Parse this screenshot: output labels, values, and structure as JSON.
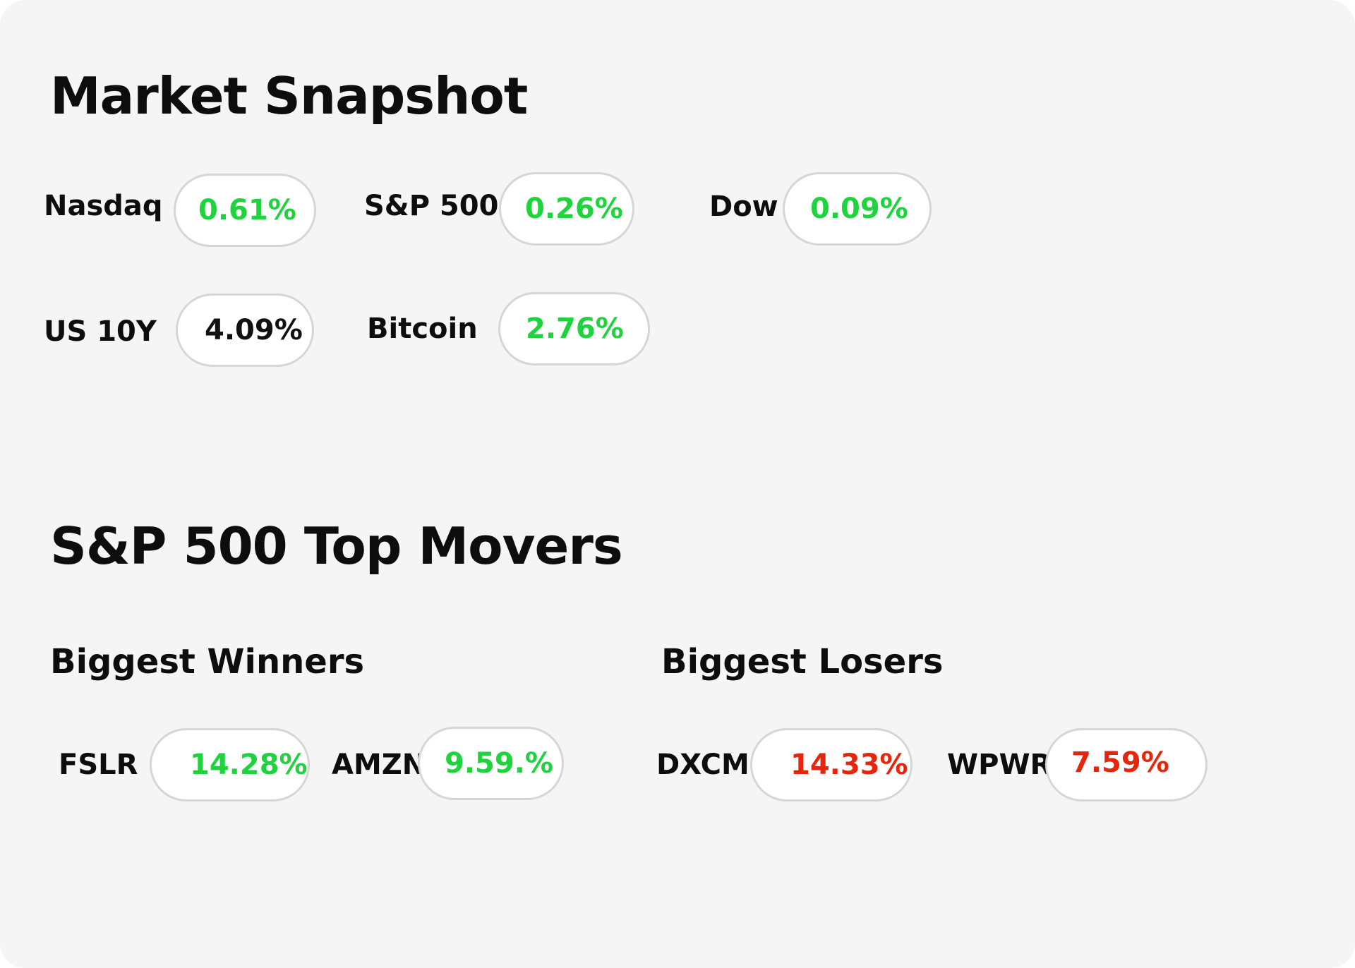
{
  "market_snapshot": {
    "title": "Market Snapshot",
    "items": [
      {
        "name": "Nasdaq",
        "change": "0.61%",
        "status_color": "#1ed33b"
      },
      {
        "name": "S&P 500",
        "change": "0.26%",
        "status_color": "#1ed33b"
      },
      {
        "name": "Dow",
        "change": "0.09%",
        "status_color": "#1ed33b"
      },
      {
        "name": "US 10Y",
        "change": "4.09%",
        "status_color": "#111111"
      },
      {
        "name": "Bitcoin",
        "change": "2.76%",
        "status_color": "#1ed33b"
      }
    ]
  },
  "top_movers": {
    "title": "S&P 500 Top Movers",
    "winners": {
      "title": "Biggest Winners",
      "items": [
        {
          "ticker": "FSLR",
          "change": "14.28%",
          "status_color": "#1ed33b"
        },
        {
          "ticker": "AMZN",
          "change": "9.59.%",
          "status_color": "#1ed33b"
        }
      ]
    },
    "losers": {
      "title": "Biggest Losers",
      "items": [
        {
          "ticker": "DXCM",
          "change": "14.33%",
          "status_color": "#e5260c"
        },
        {
          "ticker": "WPWR",
          "change": "7.59%",
          "status_color": "#e5260c"
        }
      ]
    }
  }
}
